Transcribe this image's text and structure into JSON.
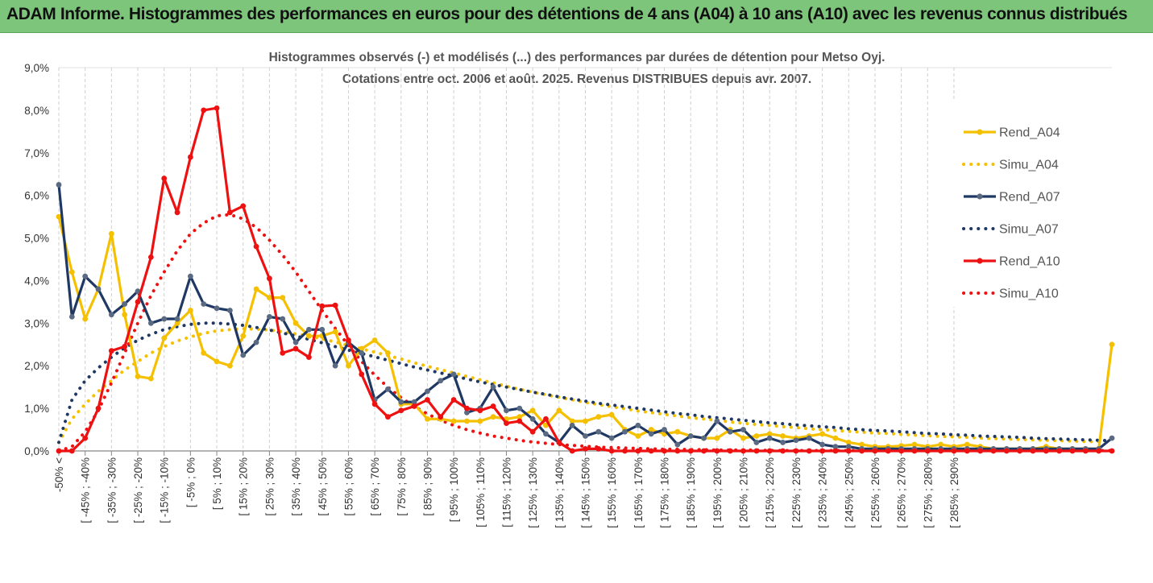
{
  "banner": {
    "title": "ADAM Informe. Histogrammes des performances en euros pour des détentions de 4 ans (A04) à 10 ans (A10) avec les revenus connus distribués"
  },
  "chart_data": {
    "type": "line",
    "title_line1": "Histogrammes observés (-) et modélisés (...) des performances par durées de détention pour Metso Oyj.",
    "title_line2": "Cotations entre oct. 2006 et août. 2025.  Revenus DISTRIBUES depuis avr. 2007.",
    "xlabel": "",
    "ylabel": "",
    "ylim": [
      0,
      9
    ],
    "y_ticks": [
      "0,0%",
      "1,0%",
      "2,0%",
      "3,0%",
      "4,0%",
      "5,0%",
      "6,0%",
      "7,0%",
      "8,0%",
      "9,0%"
    ],
    "grid": "vertical, dashed",
    "legend_position": "right",
    "x_tick_labels": [
      "-50% <",
      "[ -45% ; -40%",
      "[ -35% ; -30%",
      "[ -25% ; -20%",
      "[ -15% ; -10%",
      "[ -5% ; 0%",
      "[ 5% ; 10%",
      "[ 15% ; 20%",
      "[ 25% ; 30%",
      "[ 35% ; 40%",
      "[ 45% ; 50%",
      "[ 55% ; 60%",
      "[ 65% ; 70%",
      "[ 75% ; 80%",
      "[ 85% ; 90%",
      "[ 95% ; 100%",
      "[ 105% ; 110%",
      "[ 115% ; 120%",
      "[ 125% ; 130%",
      "[ 135% ; 140%",
      "[ 145% ; 150%",
      "[ 155% ; 160%",
      "[ 165% ; 170%",
      "[ 175% ; 180%",
      "[ 185% ; 190%",
      "[ 195% ; 200%",
      "[ 205% ; 210%",
      "[ 215% ; 220%",
      "[ 225% ; 230%",
      "[ 235% ; 240%",
      "[ 245% ; 250%",
      "[ 255% ; 260%",
      "[ 265% ; 270%",
      "[ 275% ; 280%",
      "[ 285% ; 290%"
    ],
    "series": [
      {
        "name": "Rend_A04",
        "style": "solid",
        "color": "#f5c000",
        "values": [
          5.5,
          4.2,
          3.1,
          3.8,
          5.1,
          3.2,
          1.75,
          1.7,
          2.65,
          3.0,
          3.3,
          2.3,
          2.1,
          2.0,
          2.7,
          3.8,
          3.6,
          3.6,
          3.0,
          2.7,
          2.7,
          2.8,
          2.0,
          2.4,
          2.6,
          2.3,
          1.1,
          1.1,
          0.75,
          0.75,
          0.7,
          0.7,
          0.7,
          0.8,
          0.75,
          0.8,
          0.95,
          0.6,
          0.95,
          0.7,
          0.7,
          0.8,
          0.85,
          0.5,
          0.35,
          0.5,
          0.4,
          0.45,
          0.35,
          0.3,
          0.3,
          0.5,
          0.3,
          0.35,
          0.4,
          0.35,
          0.3,
          0.35,
          0.4,
          0.3,
          0.2,
          0.15,
          0.1,
          0.1,
          0.12,
          0.15,
          0.1,
          0.15,
          0.1,
          0.15,
          0.1,
          0.05,
          0.05,
          0.05,
          0.05,
          0.1,
          0.05,
          0.05,
          0.05,
          0.05,
          2.5
        ]
      },
      {
        "name": "Simu_A04",
        "style": "dotted",
        "color": "#f5c000",
        "values": [
          0.2,
          0.75,
          1.1,
          1.4,
          1.65,
          1.9,
          2.1,
          2.3,
          2.45,
          2.58,
          2.68,
          2.76,
          2.82,
          2.85,
          2.87,
          2.86,
          2.84,
          2.8,
          2.75,
          2.7,
          2.63,
          2.56,
          2.48,
          2.4,
          2.32,
          2.24,
          2.16,
          2.07,
          1.99,
          1.91,
          1.83,
          1.75,
          1.67,
          1.6,
          1.52,
          1.45,
          1.38,
          1.32,
          1.26,
          1.2,
          1.14,
          1.09,
          1.04,
          0.99,
          0.94,
          0.9,
          0.86,
          0.82,
          0.78,
          0.75,
          0.72,
          0.68,
          0.65,
          0.62,
          0.6,
          0.57,
          0.55,
          0.52,
          0.5,
          0.48,
          0.46,
          0.44,
          0.42,
          0.41,
          0.39,
          0.37,
          0.36,
          0.34,
          0.33,
          0.32,
          0.3,
          0.29,
          0.28,
          0.27,
          0.26,
          0.25,
          0.24,
          0.23,
          0.22,
          0.22,
          0.21
        ]
      },
      {
        "name": "Rend_A07",
        "style": "solid",
        "color": "#1f3864",
        "values": [
          6.25,
          3.15,
          4.1,
          3.8,
          3.2,
          3.45,
          3.75,
          3.0,
          3.1,
          3.1,
          4.1,
          3.45,
          3.35,
          3.3,
          2.25,
          2.55,
          3.15,
          3.1,
          2.55,
          2.85,
          2.85,
          2.0,
          2.55,
          2.3,
          1.2,
          1.45,
          1.15,
          1.15,
          1.4,
          1.65,
          1.8,
          0.9,
          1.0,
          1.5,
          0.95,
          1.0,
          0.75,
          0.4,
          0.2,
          0.6,
          0.35,
          0.45,
          0.3,
          0.45,
          0.6,
          0.4,
          0.5,
          0.15,
          0.35,
          0.3,
          0.7,
          0.45,
          0.5,
          0.2,
          0.3,
          0.2,
          0.25,
          0.3,
          0.15,
          0.1,
          0.1,
          0.05,
          0.05,
          0.05,
          0.05,
          0.05,
          0.05,
          0.05,
          0.05,
          0.05,
          0.05,
          0.05,
          0.05,
          0.05,
          0.05,
          0.05,
          0.05,
          0.05,
          0.05,
          0.05,
          0.3
        ]
      },
      {
        "name": "Simu_A07",
        "style": "dotted",
        "color": "#1f3864",
        "values": [
          0.2,
          1.2,
          1.65,
          1.95,
          2.2,
          2.42,
          2.6,
          2.74,
          2.85,
          2.92,
          2.97,
          3.0,
          3.0,
          2.98,
          2.95,
          2.9,
          2.84,
          2.77,
          2.7,
          2.62,
          2.54,
          2.45,
          2.37,
          2.29,
          2.21,
          2.13,
          2.05,
          1.97,
          1.9,
          1.83,
          1.76,
          1.69,
          1.62,
          1.56,
          1.5,
          1.44,
          1.38,
          1.33,
          1.27,
          1.22,
          1.17,
          1.12,
          1.08,
          1.04,
          1.0,
          0.96,
          0.92,
          0.88,
          0.85,
          0.81,
          0.78,
          0.75,
          0.72,
          0.69,
          0.66,
          0.64,
          0.61,
          0.59,
          0.57,
          0.55,
          0.52,
          0.5,
          0.48,
          0.47,
          0.45,
          0.43,
          0.41,
          0.4,
          0.38,
          0.37,
          0.35,
          0.34,
          0.33,
          0.32,
          0.3,
          0.29,
          0.28,
          0.27,
          0.26,
          0.25,
          0.24
        ]
      },
      {
        "name": "Rend_A10",
        "style": "solid",
        "color": "#ee1111",
        "values": [
          0.0,
          0.0,
          0.3,
          1.0,
          2.35,
          2.45,
          3.5,
          4.55,
          6.4,
          5.6,
          6.9,
          8.0,
          8.05,
          5.6,
          5.75,
          4.8,
          4.05,
          2.3,
          2.4,
          2.2,
          3.4,
          3.42,
          2.6,
          1.8,
          1.1,
          0.8,
          0.95,
          1.05,
          1.2,
          0.8,
          1.2,
          1.0,
          0.95,
          1.05,
          0.65,
          0.7,
          0.45,
          0.75,
          0.2,
          0.0,
          0.05,
          0.05,
          0.0,
          0.0,
          0.0,
          0.0,
          0.0,
          0.0,
          0.0,
          0.0,
          0.0,
          0.0,
          0.0,
          0.0,
          0.0,
          0.0,
          0.0,
          0.0,
          0.0,
          0.0,
          0.0,
          0.0,
          0.0,
          0.0,
          0.0,
          0.0,
          0.0,
          0.0,
          0.0,
          0.0,
          0.0,
          0.0,
          0.0,
          0.0,
          0.0,
          0.0,
          0.0,
          0.0,
          0.0,
          0.0,
          0.0
        ]
      },
      {
        "name": "Simu_A10",
        "style": "dotted",
        "color": "#ee1111",
        "values": [
          0.0,
          0.1,
          0.45,
          0.95,
          1.6,
          2.3,
          3.0,
          3.65,
          4.2,
          4.7,
          5.1,
          5.35,
          5.52,
          5.55,
          5.45,
          5.25,
          4.95,
          4.6,
          4.2,
          3.75,
          3.3,
          2.88,
          2.48,
          2.1,
          1.78,
          1.5,
          1.25,
          1.05,
          0.87,
          0.72,
          0.6,
          0.5,
          0.42,
          0.35,
          0.3,
          0.25,
          0.21,
          0.18,
          0.15,
          0.13,
          0.11,
          0.09,
          0.08,
          0.07,
          0.06,
          0.05,
          0.04,
          0.04,
          0.03,
          0.03,
          0.02,
          0.02,
          0.02,
          0.02,
          0.01,
          0.01,
          0.01,
          0.01,
          0.01,
          0.01,
          0.01,
          0.01,
          0.01,
          0.01,
          0.01,
          0.01,
          0.01,
          0.01,
          0.01,
          0.01,
          0.01,
          0.01,
          0.01,
          0.01,
          0.01,
          0.01,
          0.01,
          0.01,
          0.01,
          0.01,
          0.01
        ]
      }
    ]
  }
}
